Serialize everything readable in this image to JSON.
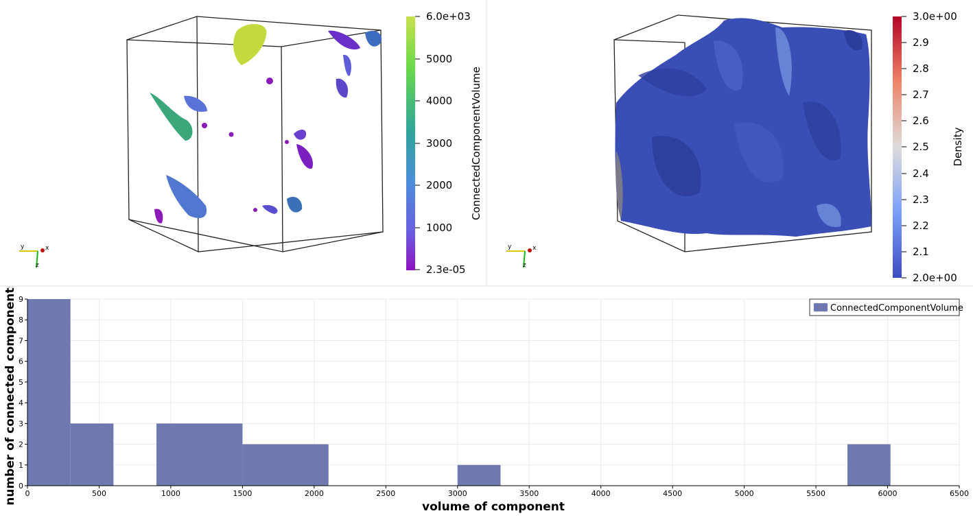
{
  "left_view": {
    "colorbar": {
      "title": "ConnectedComponentVolume",
      "labels": [
        "6.0e+03",
        "5000",
        "4000",
        "3000",
        "2000",
        "1000",
        "2.3e-05"
      ],
      "colors": [
        "#c7e14b",
        "#6ad94a",
        "#3cc457",
        "#2fa59a",
        "#4c8ed9",
        "#6a5de0",
        "#9012c0"
      ]
    },
    "axes": {
      "x": "x",
      "y": "y",
      "z": "z"
    }
  },
  "right_view": {
    "colorbar": {
      "title": "Density",
      "labels": [
        "3.0e+00",
        "2.9",
        "2.8",
        "2.7",
        "2.6",
        "2.5",
        "2.4",
        "2.3",
        "2.2",
        "2.1",
        "2.0e+00"
      ],
      "colors": [
        "#b40426",
        "#ee8468",
        "#dddcdc",
        "#7b9ff9",
        "#3b4cc0"
      ]
    },
    "axes": {
      "x": "x",
      "y": "y",
      "z": "z"
    }
  },
  "chart_data": {
    "type": "bar",
    "xlabel": "volume of component",
    "ylabel": "number of connected components",
    "xlim": [
      0,
      6500
    ],
    "ylim": [
      0,
      9
    ],
    "xticks": [
      0,
      500,
      1000,
      1500,
      2000,
      2500,
      3000,
      3500,
      4000,
      4500,
      5000,
      5500,
      6000,
      6500
    ],
    "yticks": [
      0,
      1,
      2,
      3,
      4,
      5,
      6,
      7,
      8,
      9
    ],
    "grid": true,
    "legend_position": "top-right",
    "series": [
      {
        "name": "ConnectedComponentVolume",
        "color": "#6e79b0",
        "bins": [
          {
            "x0": 0,
            "x1": 300,
            "count": 9
          },
          {
            "x0": 300,
            "x1": 600,
            "count": 3
          },
          {
            "x0": 600,
            "x1": 900,
            "count": 0
          },
          {
            "x0": 900,
            "x1": 1500,
            "count": 3
          },
          {
            "x0": 1500,
            "x1": 2100,
            "count": 2
          },
          {
            "x0": 3000,
            "x1": 3300,
            "count": 1
          },
          {
            "x0": 5720,
            "x1": 6020,
            "count": 2
          }
        ]
      }
    ]
  }
}
